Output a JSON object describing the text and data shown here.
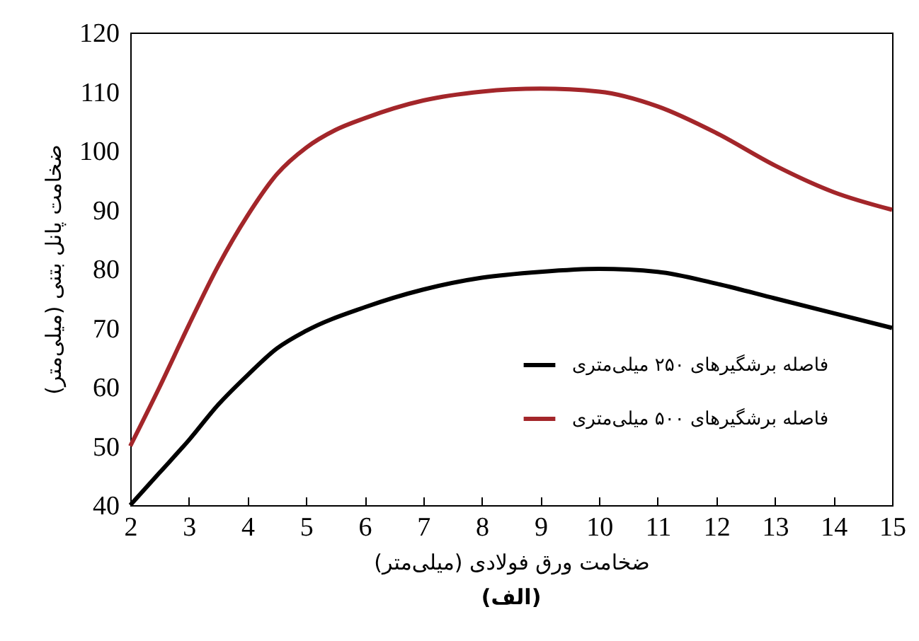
{
  "chart_data": {
    "type": "line",
    "xlabel": "ضخامت ورق فولادی (میلی‌متر)",
    "ylabel": "ضخامت پانل بتنی (میلی‌متر)",
    "annotations": [
      "(الف)"
    ],
    "xlim": [
      2,
      15
    ],
    "xticks": [
      2,
      3,
      4,
      5,
      6,
      7,
      8,
      9,
      10,
      11,
      12,
      13,
      14,
      15
    ],
    "ylim": [
      40,
      120
    ],
    "yticks": [
      40,
      50,
      60,
      70,
      80,
      90,
      100,
      110,
      120
    ],
    "grid": false,
    "legend": "right",
    "line_style": "solid",
    "marker": "none",
    "series": [
      {
        "name": "فاصله برشگیرهای ۲۵۰ میلی‌متری",
        "color": "#000000",
        "x": [
          2,
          2.5,
          3,
          3.5,
          4,
          4.5,
          5,
          6,
          7,
          8,
          9,
          10,
          11,
          12,
          13,
          14,
          15
        ],
        "values": [
          40,
          45.5,
          51,
          57,
          62,
          66.5,
          69.5,
          73.5,
          76.5,
          78.5,
          79.5,
          80,
          79.5,
          77.5,
          75,
          72.5,
          70
        ]
      },
      {
        "name": "فاصله برشگیرهای ۵۰۰ میلی‌متری",
        "color": "#a3262a",
        "x": [
          2,
          2.5,
          3,
          3.5,
          4,
          4.5,
          5,
          5.5,
          6,
          7,
          8,
          9,
          10,
          11,
          12,
          13,
          14,
          15
        ],
        "values": [
          50,
          60,
          70.5,
          80.5,
          89,
          96,
          100.5,
          103.5,
          105.5,
          108.5,
          110,
          110.5,
          110,
          107.5,
          103,
          97.5,
          93,
          90
        ]
      }
    ]
  }
}
